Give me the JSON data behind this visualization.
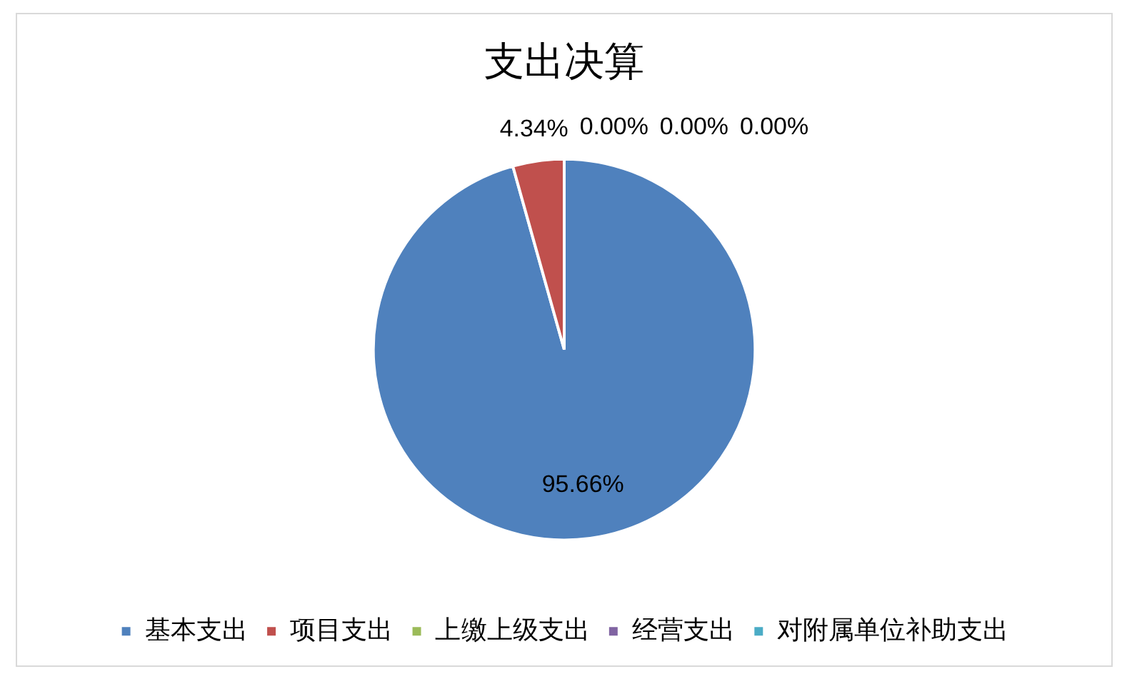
{
  "chart_data": {
    "type": "pie",
    "title": "支出决算",
    "categories": [
      "基本支出",
      "项目支出",
      "上缴上级支出",
      "经营支出",
      "对附属单位补助支出"
    ],
    "values": [
      95.66,
      4.34,
      0,
      0,
      0
    ],
    "colors": [
      "#4f81bd",
      "#c0504d",
      "#9bbb59",
      "#8064a2",
      "#4bacc6"
    ],
    "value_labels": [
      "95.66%",
      "4.34%",
      "0.00%",
      "0.00%",
      "0.00%"
    ],
    "legend": "bottom"
  }
}
